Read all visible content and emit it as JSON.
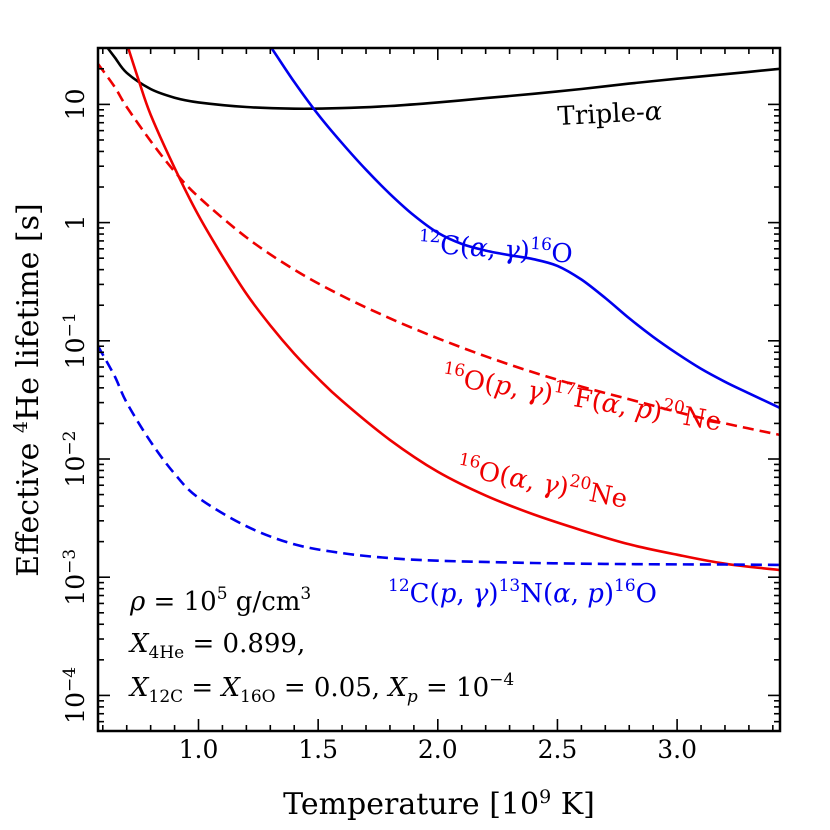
{
  "chart_data": {
    "type": "line",
    "xlabel": "Temperature [10⁹ K]",
    "ylabel": "Effective ⁴He lifetime [s]",
    "xlim": [
      0.58,
      3.43
    ],
    "ylim": [
      5e-05,
      30
    ],
    "yscale": "log",
    "grid": false,
    "x_ticks": [
      {
        "value": 1.0,
        "label": "1.0"
      },
      {
        "value": 1.5,
        "label": "1.5"
      },
      {
        "value": 2.0,
        "label": "2.0"
      },
      {
        "value": 2.5,
        "label": "2.5"
      },
      {
        "value": 3.0,
        "label": "3.0"
      }
    ],
    "y_ticks": [
      {
        "value": 10,
        "base": "10",
        "exp": ""
      },
      {
        "value": 1,
        "base": "1",
        "exp": ""
      },
      {
        "value": 0.1,
        "base": "10",
        "exp": "−1"
      },
      {
        "value": 0.01,
        "base": "10",
        "exp": "−2"
      },
      {
        "value": 0.001,
        "base": "10",
        "exp": "−3"
      },
      {
        "value": 0.0001,
        "base": "10",
        "exp": "−4"
      }
    ],
    "series": [
      {
        "key": "triple_alpha",
        "color": "#000000",
        "dash": "solid",
        "label_parts": [
          {
            "t": "Triple-"
          },
          {
            "t": "α",
            "i": true
          }
        ],
        "points": [
          [
            0.6,
            34
          ],
          [
            0.65,
            25
          ],
          [
            0.7,
            18.5
          ],
          [
            0.8,
            13.5
          ],
          [
            0.9,
            11.4
          ],
          [
            1.0,
            10.4
          ],
          [
            1.2,
            9.5
          ],
          [
            1.4,
            9.2
          ],
          [
            1.6,
            9.3
          ],
          [
            1.8,
            9.7
          ],
          [
            2.0,
            10.4
          ],
          [
            2.2,
            11.3
          ],
          [
            2.4,
            12.3
          ],
          [
            2.6,
            13.5
          ],
          [
            2.8,
            15
          ],
          [
            3.0,
            16.5
          ],
          [
            3.2,
            18
          ],
          [
            3.43,
            20
          ]
        ]
      },
      {
        "key": "c12_ag",
        "color": "#0000ee",
        "dash": "solid",
        "label_parts": [
          {
            "t": "12",
            "sup": true
          },
          {
            "t": "C("
          },
          {
            "t": "α",
            "i": true
          },
          {
            "t": ", "
          },
          {
            "t": "γ",
            "i": true
          },
          {
            "t": ")"
          },
          {
            "t": "16",
            "sup": true
          },
          {
            "t": "O"
          }
        ],
        "points": [
          [
            1.2,
            60
          ],
          [
            1.3,
            31
          ],
          [
            1.4,
            15.5
          ],
          [
            1.5,
            8.2
          ],
          [
            1.6,
            4.7
          ],
          [
            1.7,
            2.8
          ],
          [
            1.8,
            1.75
          ],
          [
            1.9,
            1.15
          ],
          [
            2.0,
            0.82
          ],
          [
            2.1,
            0.66
          ],
          [
            2.2,
            0.58
          ],
          [
            2.3,
            0.53
          ],
          [
            2.4,
            0.49
          ],
          [
            2.5,
            0.43
          ],
          [
            2.6,
            0.33
          ],
          [
            2.7,
            0.23
          ],
          [
            2.8,
            0.155
          ],
          [
            2.9,
            0.108
          ],
          [
            3.0,
            0.078
          ],
          [
            3.1,
            0.058
          ],
          [
            3.2,
            0.045
          ],
          [
            3.3,
            0.036
          ],
          [
            3.43,
            0.027
          ]
        ]
      },
      {
        "key": "o16_pg_f17",
        "color": "#ee0000",
        "dash": "dashed",
        "label_parts": [
          {
            "t": "16",
            "sup": true
          },
          {
            "t": "O("
          },
          {
            "t": "p",
            "i": true
          },
          {
            "t": ", "
          },
          {
            "t": "γ",
            "i": true
          },
          {
            "t": ")"
          },
          {
            "t": "17",
            "sup": true
          },
          {
            "t": "F("
          },
          {
            "t": "α",
            "i": true
          },
          {
            "t": ", "
          },
          {
            "t": "p",
            "i": true
          },
          {
            "t": ")"
          },
          {
            "t": "20",
            "sup": true
          },
          {
            "t": "Ne"
          }
        ],
        "points": [
          [
            0.58,
            22
          ],
          [
            0.65,
            14
          ],
          [
            0.7,
            9.5
          ],
          [
            0.8,
            4.9
          ],
          [
            0.9,
            2.7
          ],
          [
            1.0,
            1.65
          ],
          [
            1.2,
            0.75
          ],
          [
            1.4,
            0.4
          ],
          [
            1.6,
            0.24
          ],
          [
            1.8,
            0.155
          ],
          [
            2.0,
            0.105
          ],
          [
            2.2,
            0.074
          ],
          [
            2.4,
            0.054
          ],
          [
            2.6,
            0.041
          ],
          [
            2.8,
            0.032
          ],
          [
            3.0,
            0.025
          ],
          [
            3.2,
            0.02
          ],
          [
            3.43,
            0.016
          ]
        ]
      },
      {
        "key": "o16_ag",
        "color": "#ee0000",
        "dash": "solid",
        "label_parts": [
          {
            "t": "16",
            "sup": true
          },
          {
            "t": "O("
          },
          {
            "t": "α",
            "i": true
          },
          {
            "t": ", "
          },
          {
            "t": "γ",
            "i": true
          },
          {
            "t": ")"
          },
          {
            "t": "20",
            "sup": true
          },
          {
            "t": "Ne"
          }
        ],
        "points": [
          [
            0.66,
            60
          ],
          [
            0.7,
            33
          ],
          [
            0.75,
            16
          ],
          [
            0.8,
            8.2
          ],
          [
            0.9,
            2.9
          ],
          [
            1.0,
            1.15
          ],
          [
            1.1,
            0.52
          ],
          [
            1.2,
            0.25
          ],
          [
            1.3,
            0.135
          ],
          [
            1.4,
            0.078
          ],
          [
            1.5,
            0.048
          ],
          [
            1.6,
            0.031
          ],
          [
            1.8,
            0.0145
          ],
          [
            2.0,
            0.0078
          ],
          [
            2.2,
            0.0049
          ],
          [
            2.4,
            0.0034
          ],
          [
            2.6,
            0.0025
          ],
          [
            2.8,
            0.0019
          ],
          [
            3.0,
            0.00155
          ],
          [
            3.2,
            0.0013
          ],
          [
            3.43,
            0.00115
          ]
        ]
      },
      {
        "key": "c12_pg_n13",
        "color": "#0000ee",
        "dash": "dashed",
        "label_parts": [
          {
            "t": "12",
            "sup": true
          },
          {
            "t": "C("
          },
          {
            "t": "p",
            "i": true
          },
          {
            "t": ", "
          },
          {
            "t": "γ",
            "i": true
          },
          {
            "t": ")"
          },
          {
            "t": "13",
            "sup": true
          },
          {
            "t": "N("
          },
          {
            "t": "α",
            "i": true
          },
          {
            "t": ", "
          },
          {
            "t": "p",
            "i": true
          },
          {
            "t": ")"
          },
          {
            "t": "16",
            "sup": true
          },
          {
            "t": "O"
          }
        ],
        "points": [
          [
            0.58,
            0.09
          ],
          [
            0.65,
            0.05
          ],
          [
            0.7,
            0.03
          ],
          [
            0.8,
            0.014
          ],
          [
            0.9,
            0.0075
          ],
          [
            1.0,
            0.0047
          ],
          [
            1.2,
            0.0027
          ],
          [
            1.4,
            0.0019
          ],
          [
            1.6,
            0.0016
          ],
          [
            1.8,
            0.00145
          ],
          [
            2.0,
            0.00138
          ],
          [
            2.4,
            0.00132
          ],
          [
            2.8,
            0.00129
          ],
          [
            3.2,
            0.00128
          ],
          [
            3.43,
            0.00127
          ]
        ]
      }
    ],
    "annotations": [
      {
        "key": "rho",
        "parts": [
          {
            "t": "ρ",
            "i": true
          },
          {
            "t": " = 10",
            "up": true
          },
          {
            "t": "5",
            "sup": true,
            "up": true
          },
          {
            "t": " g/cm",
            "up": true
          },
          {
            "t": "3",
            "sup": true,
            "up": true
          }
        ]
      },
      {
        "key": "x_he",
        "parts": [
          {
            "t": "X",
            "i": true
          },
          {
            "t": "4He",
            "sub": true,
            "up": true
          },
          {
            "t": " = 0.899,",
            "up": true
          }
        ]
      },
      {
        "key": "x_c_o_p",
        "parts": [
          {
            "t": "X",
            "i": true
          },
          {
            "t": "12C",
            "sub": true,
            "up": true
          },
          {
            "t": " = ",
            "up": true
          },
          {
            "t": "X",
            "i": true
          },
          {
            "t": "16O",
            "sub": true,
            "up": true
          },
          {
            "t": " = 0.05, ",
            "up": true
          },
          {
            "t": "X",
            "i": true
          },
          {
            "t": "p",
            "sub": true
          },
          {
            "t": " = 10",
            "up": true
          },
          {
            "t": "−4",
            "sup": true,
            "up": true
          }
        ]
      }
    ]
  }
}
